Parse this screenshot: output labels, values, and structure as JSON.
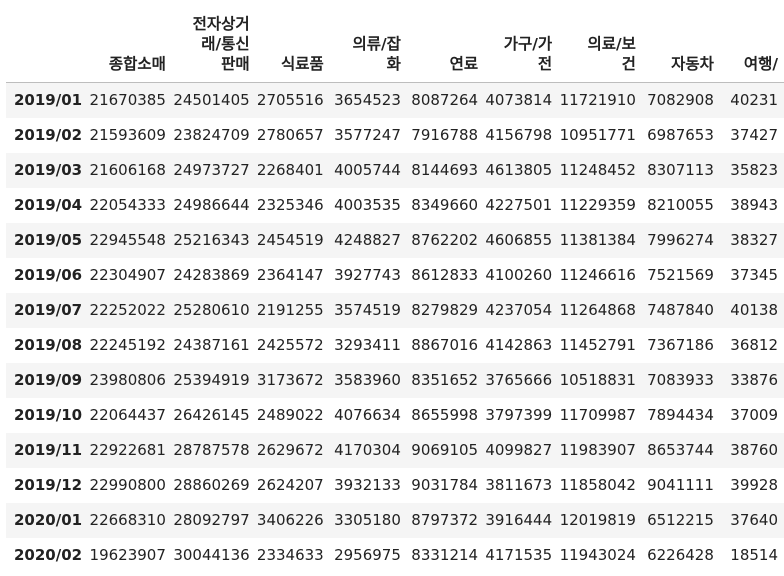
{
  "table": {
    "index_header": "",
    "columns": [
      "종합소매",
      "전자상거래/통신판매",
      "식료품",
      "의류/잡화",
      "연료",
      "가구/가전",
      "의료/보건",
      "자동차",
      "여행/"
    ],
    "header_lines": [
      [
        "종합소매"
      ],
      [
        "전자상거",
        "래/통신",
        "판매"
      ],
      [
        "식료품"
      ],
      [
        "의류/잡",
        "화"
      ],
      [
        "연료"
      ],
      [
        "가구/가",
        "전"
      ],
      [
        "의료/보",
        "건"
      ],
      [
        "자동차"
      ],
      [
        "여행/"
      ]
    ],
    "rows": [
      {
        "index": "2019/01",
        "values": [
          "21670385",
          "24501405",
          "2705516",
          "3654523",
          "8087264",
          "4073814",
          "11721910",
          "7082908",
          "40231"
        ]
      },
      {
        "index": "2019/02",
        "values": [
          "21593609",
          "23824709",
          "2780657",
          "3577247",
          "7916788",
          "4156798",
          "10951771",
          "6987653",
          "37427"
        ]
      },
      {
        "index": "2019/03",
        "values": [
          "21606168",
          "24973727",
          "2268401",
          "4005744",
          "8144693",
          "4613805",
          "11248452",
          "8307113",
          "35823"
        ]
      },
      {
        "index": "2019/04",
        "values": [
          "22054333",
          "24986644",
          "2325346",
          "4003535",
          "8349660",
          "4227501",
          "11229359",
          "8210055",
          "38943"
        ]
      },
      {
        "index": "2019/05",
        "values": [
          "22945548",
          "25216343",
          "2454519",
          "4248827",
          "8762202",
          "4606855",
          "11381384",
          "7996274",
          "38327"
        ]
      },
      {
        "index": "2019/06",
        "values": [
          "22304907",
          "24283869",
          "2364147",
          "3927743",
          "8612833",
          "4100260",
          "11246616",
          "7521569",
          "37345"
        ]
      },
      {
        "index": "2019/07",
        "values": [
          "22252022",
          "25280610",
          "2191255",
          "3574519",
          "8279829",
          "4237054",
          "11264868",
          "7487840",
          "40138"
        ]
      },
      {
        "index": "2019/08",
        "values": [
          "22245192",
          "24387161",
          "2425572",
          "3293411",
          "8867016",
          "4142863",
          "11452791",
          "7367186",
          "36812"
        ]
      },
      {
        "index": "2019/09",
        "values": [
          "23980806",
          "25394919",
          "3173672",
          "3583960",
          "8351652",
          "3765666",
          "10518831",
          "7083933",
          "33876"
        ]
      },
      {
        "index": "2019/10",
        "values": [
          "22064437",
          "26426145",
          "2489022",
          "4076634",
          "8655998",
          "3797399",
          "11709987",
          "7894434",
          "37009"
        ]
      },
      {
        "index": "2019/11",
        "values": [
          "22922681",
          "28787578",
          "2629672",
          "4170304",
          "9069105",
          "4099827",
          "11983907",
          "8653744",
          "38760"
        ]
      },
      {
        "index": "2019/12",
        "values": [
          "22990800",
          "28860269",
          "2624207",
          "3932133",
          "9031784",
          "3811673",
          "11858042",
          "9041111",
          "39928"
        ]
      },
      {
        "index": "2020/01",
        "values": [
          "22668310",
          "28092797",
          "3406226",
          "3305180",
          "8797372",
          "3916444",
          "12019819",
          "6512215",
          "37640"
        ]
      },
      {
        "index": "2020/02",
        "values": [
          "19623907",
          "30044136",
          "2334633",
          "2956975",
          "8331214",
          "4171535",
          "11943024",
          "6226428",
          "18514"
        ]
      }
    ]
  },
  "colors": {
    "stripe": "#f5f5f5",
    "border": "#bdbdbd",
    "text": "#222222"
  }
}
